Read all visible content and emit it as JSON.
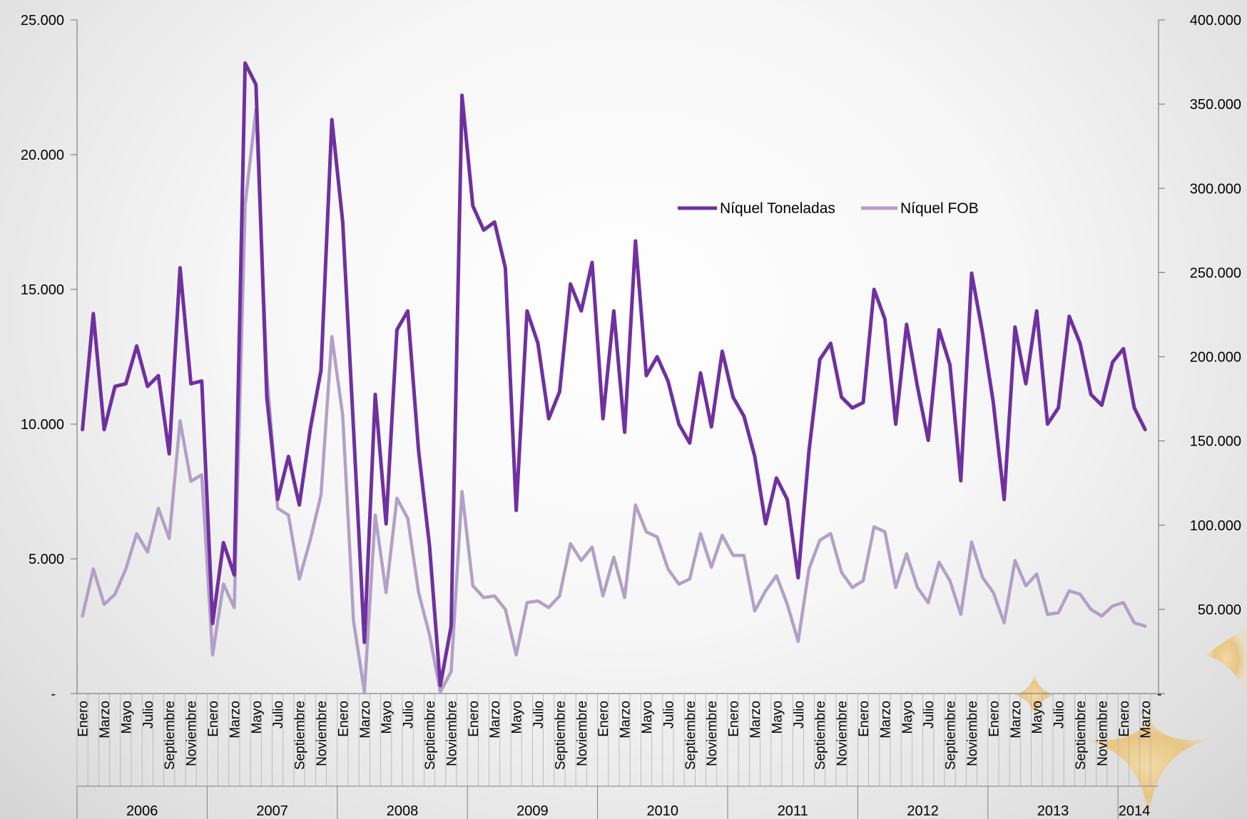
{
  "chart_data": {
    "type": "line",
    "title": "",
    "series": [
      {
        "name": "Níquel Toneladas",
        "axis": "left",
        "color": "#7030a0",
        "values": [
          9800,
          14100,
          9800,
          11400,
          11500,
          12900,
          11400,
          11800,
          8900,
          15800,
          11500,
          11600,
          2600,
          5600,
          4400,
          23400,
          22600,
          11000,
          7200,
          8800,
          7000,
          9800,
          12000,
          21300,
          17500,
          9800,
          1900,
          11100,
          6300,
          13500,
          14200,
          9000,
          5500,
          300,
          2500,
          22200,
          18100,
          17200,
          17500,
          15800,
          6800,
          14200,
          13000,
          10200,
          11200,
          15200,
          14200,
          16000,
          10200,
          14200,
          9700,
          16800,
          11800,
          12500,
          11600,
          10000,
          9300,
          11900,
          9900,
          12700,
          11000,
          10300,
          8800,
          6300,
          8000,
          7200,
          4300,
          9000,
          12400,
          13000,
          11000,
          10600,
          10800,
          15000,
          13900,
          10000,
          13700,
          11400,
          9400,
          13500,
          12200,
          7900,
          15600,
          13400,
          10800,
          7200,
          13600,
          11500,
          14200,
          10000,
          10600,
          14000,
          13000,
          11100,
          10700,
          12300,
          12800,
          10600,
          9800
        ]
      },
      {
        "name": "Níquel FOB",
        "axis": "right",
        "color": "#b1a0c7",
        "values": [
          46000,
          74000,
          53000,
          59000,
          74000,
          95000,
          84000,
          110000,
          92000,
          162000,
          126000,
          130000,
          23000,
          65000,
          51000,
          290000,
          347000,
          190000,
          110000,
          106000,
          68000,
          91000,
          118000,
          212000,
          165000,
          43000,
          1000,
          106000,
          60000,
          116000,
          104000,
          60000,
          35000,
          1000,
          13000,
          120000,
          64000,
          57000,
          58000,
          50000,
          23000,
          54000,
          55000,
          51000,
          58000,
          89000,
          79000,
          87000,
          58000,
          81000,
          57000,
          112000,
          96000,
          93000,
          74000,
          65000,
          68000,
          95000,
          75000,
          94000,
          82000,
          82000,
          49000,
          61000,
          70000,
          53000,
          31000,
          74000,
          91000,
          95000,
          72000,
          63000,
          67000,
          99000,
          96000,
          63000,
          83000,
          63000,
          54000,
          78000,
          67000,
          47000,
          90000,
          69000,
          60000,
          42000,
          79000,
          64000,
          71000,
          47000,
          48000,
          61000,
          59000,
          50000,
          46000,
          52000,
          54000,
          42000,
          40000
        ]
      }
    ],
    "y_left": {
      "min": 0,
      "max": 25000,
      "ticks": [
        "-",
        "5.000",
        "10.000",
        "15.000",
        "20.000",
        "25.000"
      ]
    },
    "y_right": {
      "min": 0,
      "max": 400000,
      "ticks": [
        "-",
        "50.000",
        "100.000",
        "150.000",
        "200.000",
        "250.000",
        "300.000",
        "350.000",
        "400.000"
      ]
    },
    "month_labels": [
      "Enero",
      "Marzo",
      "Mayo",
      "Julio",
      "Septiembre",
      "Noviembre"
    ],
    "years": [
      {
        "label": "2006",
        "months": 12
      },
      {
        "label": "2007",
        "months": 12
      },
      {
        "label": "2008",
        "months": 12
      },
      {
        "label": "2009",
        "months": 12
      },
      {
        "label": "2010",
        "months": 12
      },
      {
        "label": "2011",
        "months": 12
      },
      {
        "label": "2012",
        "months": 12
      },
      {
        "label": "2013",
        "months": 12
      },
      {
        "label": "2014",
        "months": 3
      }
    ],
    "legend": {
      "placement": "top-center"
    }
  }
}
